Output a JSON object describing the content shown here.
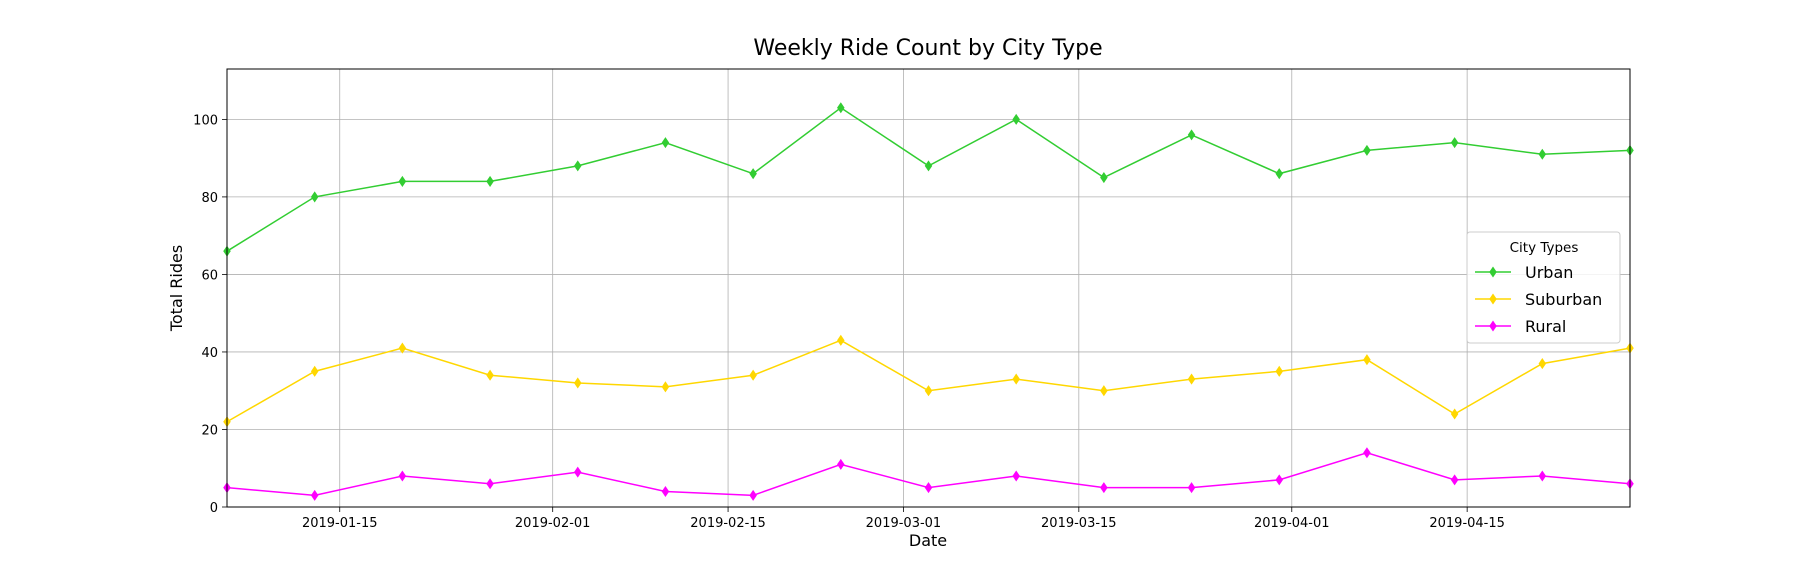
{
  "chart_data": {
    "type": "line",
    "title": "Weekly Ride Count by City Type",
    "xlabel": "Date",
    "ylabel": "Total Rides",
    "x": [
      "2019-01-06",
      "2019-01-13",
      "2019-01-20",
      "2019-01-27",
      "2019-02-03",
      "2019-02-10",
      "2019-02-17",
      "2019-02-24",
      "2019-03-03",
      "2019-03-10",
      "2019-03-17",
      "2019-03-24",
      "2019-03-31",
      "2019-04-07",
      "2019-04-14",
      "2019-04-21",
      "2019-04-28"
    ],
    "xlim": [
      "2019-01-06",
      "2019-04-28"
    ],
    "xticks": [
      "2019-01-15",
      "2019-02-01",
      "2019-02-15",
      "2019-03-01",
      "2019-03-15",
      "2019-04-01",
      "2019-04-15"
    ],
    "ylim": [
      0,
      113
    ],
    "yticks": [
      0,
      20,
      40,
      60,
      80,
      100
    ],
    "grid": true,
    "legend": {
      "title": "City Types",
      "placement": "center-right"
    },
    "series": [
      {
        "name": "Urban",
        "color": "#32cd32",
        "marker": "thin-diamond",
        "values": [
          66,
          80,
          84,
          84,
          88,
          94,
          86,
          103,
          88,
          100,
          85,
          96,
          86,
          92,
          94,
          91,
          92
        ]
      },
      {
        "name": "Suburban",
        "color": "#ffd700",
        "marker": "thin-diamond",
        "values": [
          22,
          35,
          41,
          34,
          32,
          31,
          34,
          43,
          30,
          33,
          30,
          33,
          35,
          38,
          24,
          37,
          41
        ]
      },
      {
        "name": "Rural",
        "color": "#ff00ff",
        "marker": "thin-diamond",
        "values": [
          5,
          3,
          8,
          6,
          9,
          4,
          3,
          11,
          5,
          8,
          5,
          5,
          7,
          14,
          7,
          8,
          6
        ]
      }
    ]
  }
}
